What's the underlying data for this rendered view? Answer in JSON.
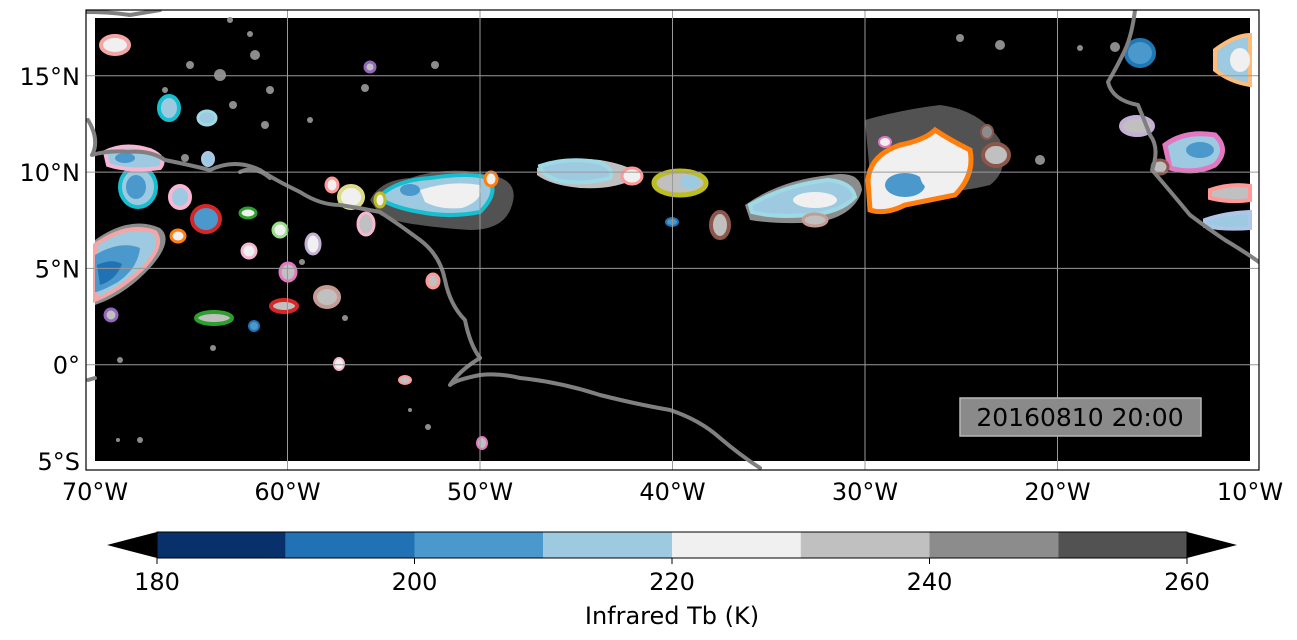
{
  "map": {
    "lon_range": [
      -70,
      -10
    ],
    "lat_range": [
      -5,
      18
    ],
    "background": "#000000",
    "gridlines": true,
    "lon_ticks": [
      {
        "value": -70,
        "label": "70°W"
      },
      {
        "value": -60,
        "label": "60°W"
      },
      {
        "value": -50,
        "label": "50°W"
      },
      {
        "value": -40,
        "label": "40°W"
      },
      {
        "value": -30,
        "label": "30°W"
      },
      {
        "value": -20,
        "label": "20°W"
      },
      {
        "value": -10,
        "label": "10°W"
      }
    ],
    "lat_ticks": [
      {
        "value": 15,
        "label": "15°N"
      },
      {
        "value": 10,
        "label": "10°N"
      },
      {
        "value": 5,
        "label": "5°N"
      },
      {
        "value": 0,
        "label": "0°"
      },
      {
        "value": -5,
        "label": "5°S"
      }
    ],
    "timestamp": "20160810 20:00"
  },
  "colorbar": {
    "label": "Infrared Tb (K)",
    "min": 180,
    "max": 260,
    "extend": "both",
    "ticks": [
      {
        "value": 180,
        "label": "180"
      },
      {
        "value": 200,
        "label": "200"
      },
      {
        "value": 220,
        "label": "220"
      },
      {
        "value": 240,
        "label": "240"
      },
      {
        "value": 260,
        "label": "260"
      }
    ],
    "bins": [
      {
        "from": 180,
        "to": 190,
        "color": "#08306b"
      },
      {
        "from": 190,
        "to": 200,
        "color": "#2171b5"
      },
      {
        "from": 200,
        "to": 210,
        "color": "#4a98cc"
      },
      {
        "from": 210,
        "to": 220,
        "color": "#9ecae1"
      },
      {
        "from": 220,
        "to": 230,
        "color": "#f0f0f0"
      },
      {
        "from": 230,
        "to": 240,
        "color": "#c0c0c0"
      },
      {
        "from": 240,
        "to": 250,
        "color": "#8c8c8c"
      },
      {
        "from": 250,
        "to": 260,
        "color": "#525252"
      }
    ],
    "under_color": "#000000",
    "over_color": "#000000"
  }
}
